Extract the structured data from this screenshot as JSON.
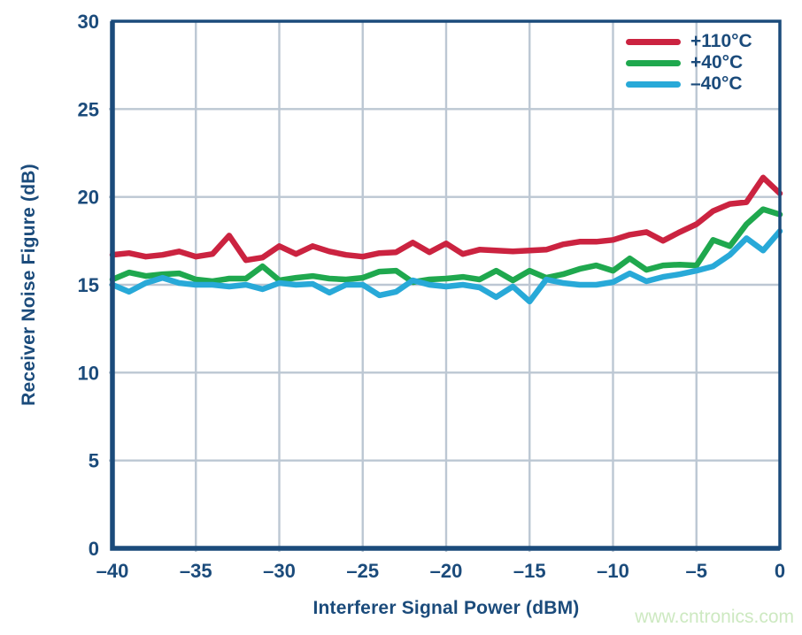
{
  "page": {
    "watermark": {
      "text": "www.cntronics.com",
      "color": "#cde9c1"
    }
  },
  "chart_data": {
    "type": "line",
    "title": "",
    "xlabel": "Interferer Signal Power (dBM)",
    "ylabel": "Receiver Noise Figure (dB)",
    "xlim": [
      -40,
      0
    ],
    "ylim": [
      0,
      30
    ],
    "xticks": [
      -40,
      -35,
      -30,
      -25,
      -20,
      -15,
      -10,
      -5,
      0
    ],
    "xtick_labels": [
      "–40",
      "–35",
      "–30",
      "–25",
      "–20",
      "–15",
      "–10",
      "–5",
      "0"
    ],
    "yticks": [
      0,
      5,
      10,
      15,
      20,
      25,
      30
    ],
    "ytick_labels": [
      "0",
      "5",
      "10",
      "15",
      "20",
      "25",
      "30"
    ],
    "grid": true,
    "legend_position": "top-right",
    "colors": {
      "axis": "#1b4b7b",
      "grid": "#bcc7d3",
      "tick_text": "#1b4b7b"
    },
    "x": [
      -40,
      -39,
      -38,
      -37,
      -36,
      -35,
      -34,
      -33,
      -32,
      -31,
      -30,
      -29,
      -28,
      -27,
      -26,
      -25,
      -24,
      -23,
      -22,
      -21,
      -20,
      -19,
      -18,
      -17,
      -16,
      -15,
      -14,
      -13,
      -12,
      -11,
      -10,
      -9,
      -8,
      -7,
      -6,
      -5,
      -4,
      -3,
      -2,
      -1,
      0
    ],
    "series": [
      {
        "name": "+110°C",
        "color": "#cb2340",
        "values": [
          16.7,
          16.8,
          16.6,
          16.7,
          16.9,
          16.6,
          16.75,
          17.8,
          16.4,
          16.55,
          17.2,
          16.75,
          17.2,
          16.9,
          16.7,
          16.6,
          16.8,
          16.85,
          17.4,
          16.85,
          17.35,
          16.75,
          17.0,
          16.95,
          16.9,
          16.95,
          17.0,
          17.3,
          17.45,
          17.45,
          17.55,
          17.85,
          18.0,
          17.5,
          18.0,
          18.45,
          19.2,
          19.6,
          19.7,
          21.1,
          20.2
        ]
      },
      {
        "name": "+40°C",
        "color": "#1fa84e",
        "values": [
          15.3,
          15.7,
          15.5,
          15.6,
          15.65,
          15.3,
          15.2,
          15.35,
          15.35,
          16.05,
          15.25,
          15.4,
          15.5,
          15.35,
          15.3,
          15.4,
          15.75,
          15.8,
          15.15,
          15.3,
          15.35,
          15.45,
          15.3,
          15.8,
          15.25,
          15.8,
          15.4,
          15.6,
          15.9,
          16.1,
          15.8,
          16.5,
          15.85,
          16.1,
          16.15,
          16.1,
          17.55,
          17.2,
          18.45,
          19.3,
          19.0
        ]
      },
      {
        "name": "–40°C",
        "color": "#28a9d8",
        "values": [
          15.0,
          14.6,
          15.1,
          15.4,
          15.1,
          15.0,
          15.0,
          14.9,
          15.0,
          14.75,
          15.1,
          15.0,
          15.05,
          14.55,
          15.0,
          15.0,
          14.4,
          14.6,
          15.25,
          15.0,
          14.9,
          15.0,
          14.85,
          14.3,
          14.9,
          14.05,
          15.3,
          15.1,
          15.0,
          15.0,
          15.15,
          15.65,
          15.2,
          15.45,
          15.6,
          15.8,
          16.05,
          16.7,
          17.65,
          16.95,
          18.05
        ]
      }
    ]
  }
}
